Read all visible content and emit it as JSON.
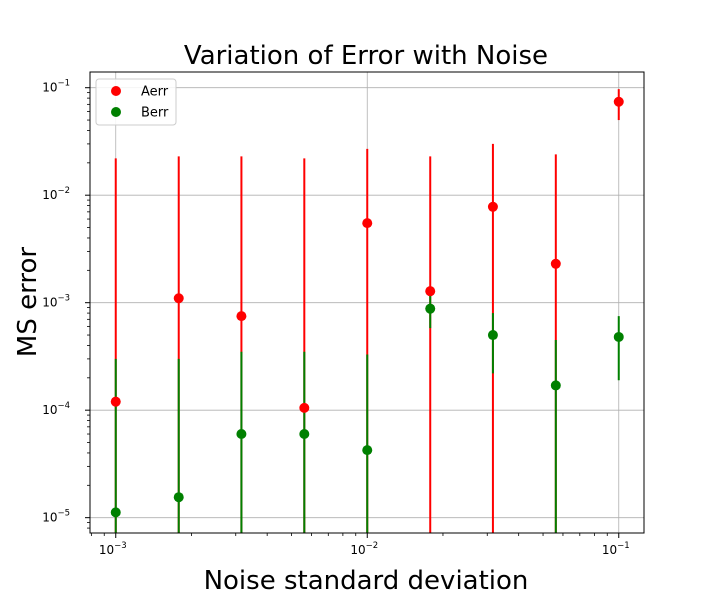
{
  "chart_data": {
    "type": "scatter",
    "title": "Variation of Error with Noise",
    "xlabel": "Noise standard deviation",
    "ylabel": "MS error",
    "x_scale": "log",
    "y_scale": "log",
    "xlim": [
      0.00079,
      0.126
    ],
    "ylim": [
      7.2e-06,
      0.14
    ],
    "grid": true,
    "legend_position": "top-left",
    "x_ticks": [
      {
        "value": 0.001,
        "base": "10",
        "exp": "−3"
      },
      {
        "value": 0.01,
        "base": "10",
        "exp": "−2"
      },
      {
        "value": 0.1,
        "base": "10",
        "exp": "−1"
      }
    ],
    "y_ticks": [
      {
        "value": 1e-05,
        "base": "10",
        "exp": "−5"
      },
      {
        "value": 0.0001,
        "base": "10",
        "exp": "−4"
      },
      {
        "value": 0.001,
        "base": "10",
        "exp": "−3"
      },
      {
        "value": 0.01,
        "base": "10",
        "exp": "−2"
      },
      {
        "value": 0.1,
        "base": "10",
        "exp": "−1"
      }
    ],
    "x": [
      0.001,
      0.00178,
      0.00316,
      0.00562,
      0.01,
      0.0178,
      0.0316,
      0.0562,
      0.1
    ],
    "series": [
      {
        "name": "Aerr",
        "color": "#ff0000",
        "values": [
          0.00012,
          0.0011,
          0.00075,
          0.000105,
          0.0055,
          0.00128,
          0.0078,
          0.0023,
          0.074
        ],
        "err_low": [
          7.2e-06,
          7.2e-06,
          7.2e-06,
          7.2e-06,
          7.2e-06,
          7.2e-06,
          7.2e-06,
          7.2e-06,
          0.05
        ],
        "err_high": [
          0.022,
          0.023,
          0.023,
          0.022,
          0.027,
          0.023,
          0.03,
          0.024,
          0.097
        ]
      },
      {
        "name": "Berr",
        "color": "#008000",
        "values": [
          1.12e-05,
          1.55e-05,
          6e-05,
          6e-05,
          4.25e-05,
          0.00088,
          0.0005,
          0.00017,
          0.00048
        ],
        "err_low": [
          7.2e-06,
          7.2e-06,
          7.2e-06,
          7.2e-06,
          7.2e-06,
          0.00058,
          0.00022,
          7.2e-06,
          0.00019
        ],
        "err_high": [
          0.0003,
          0.0003,
          0.00035,
          0.00035,
          0.00033,
          0.00118,
          0.0008,
          0.00045,
          0.00075
        ]
      }
    ]
  }
}
